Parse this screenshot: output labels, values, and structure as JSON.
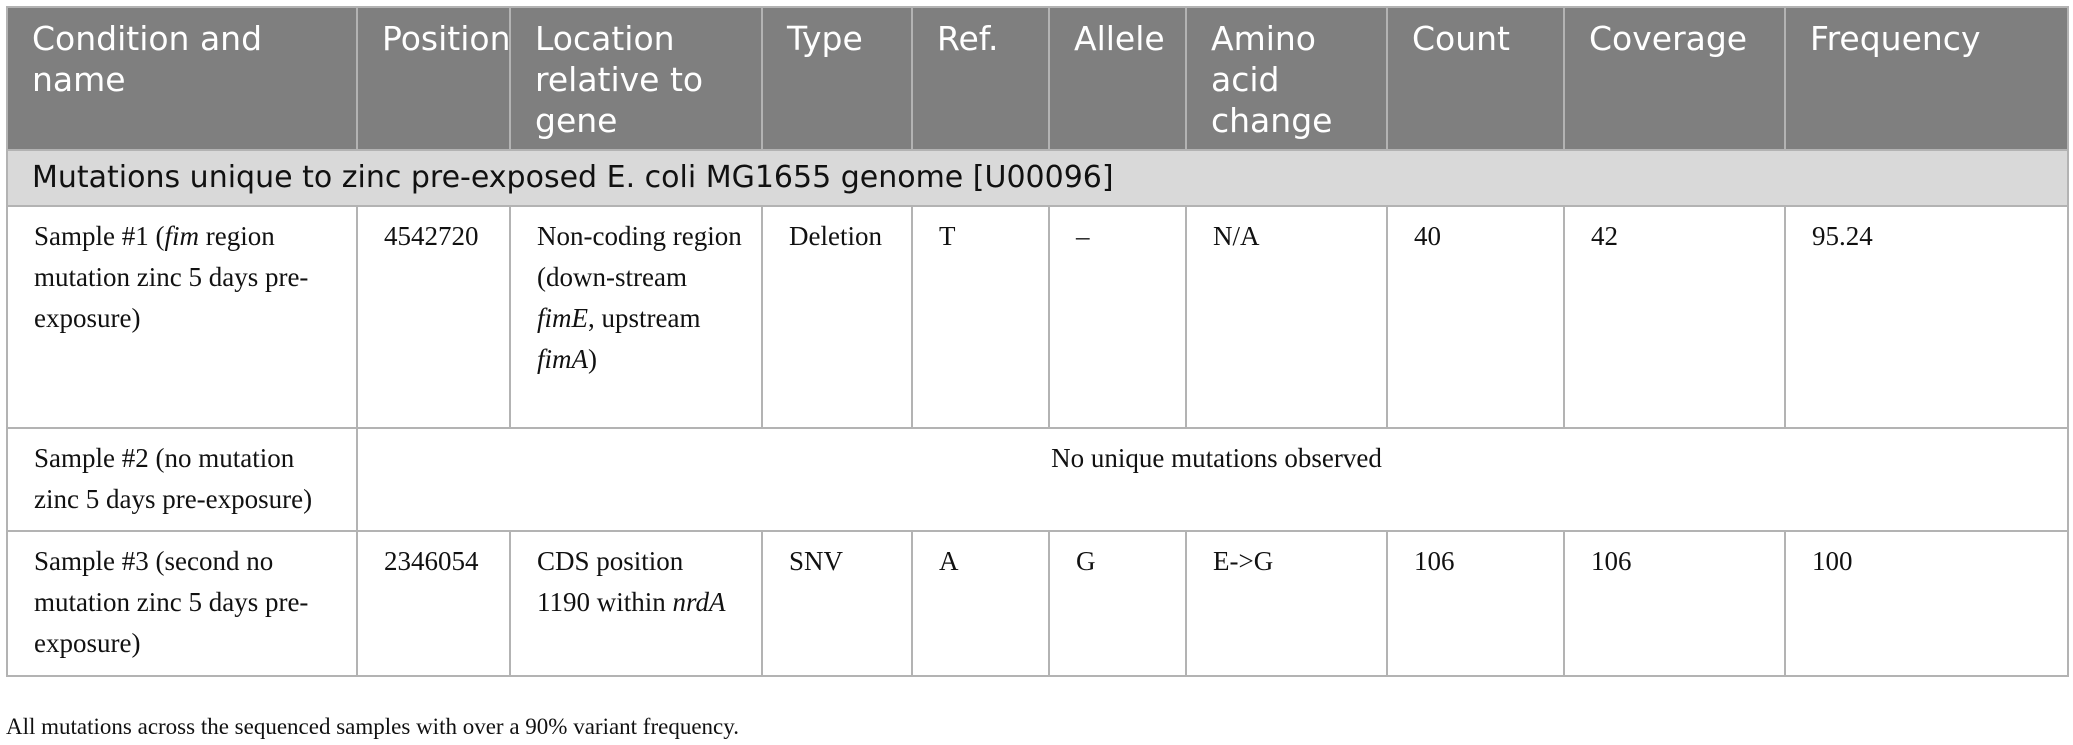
{
  "table": {
    "headers": [
      "Condition and name",
      "Position",
      "Location relative to gene",
      "Type",
      "Ref.",
      "Allele",
      "Amino acid change",
      "Count",
      "Coverage",
      "Frequency"
    ],
    "section_title": "Mutations unique to zinc pre-exposed E. coli MG1655 genome [U00096]",
    "rows": [
      {
        "condition_pre": "Sample #1 (",
        "condition_gene": "fim",
        "condition_post": " region mutation zinc 5 days pre-exposure)",
        "position": "4542720",
        "location_pre": "Non-coding region (down-stream ",
        "location_gene1": "fimE",
        "location_mid": ", upstream ",
        "location_gene2": "fimA",
        "location_post": ")",
        "type": "Deletion",
        "ref": "T",
        "allele": "–",
        "aa_change": "N/A",
        "count": "40",
        "coverage": "42",
        "frequency": "95.24"
      },
      {
        "condition": "Sample #2 (no mutation zinc 5 days pre-exposure)",
        "note": "No unique mutations observed"
      },
      {
        "condition": "Sample #3 (second no mutation zinc 5 days pre-exposure)",
        "position": "2346054",
        "location_pre": "CDS position 1190 within ",
        "location_gene": "nrdA",
        "type": "SNV",
        "ref": "A",
        "allele": "G",
        "aa_change": "E->G",
        "count": "106",
        "coverage": "106",
        "frequency": "100"
      }
    ]
  },
  "caption": "All mutations across the sequenced samples with over a 90% variant frequency."
}
